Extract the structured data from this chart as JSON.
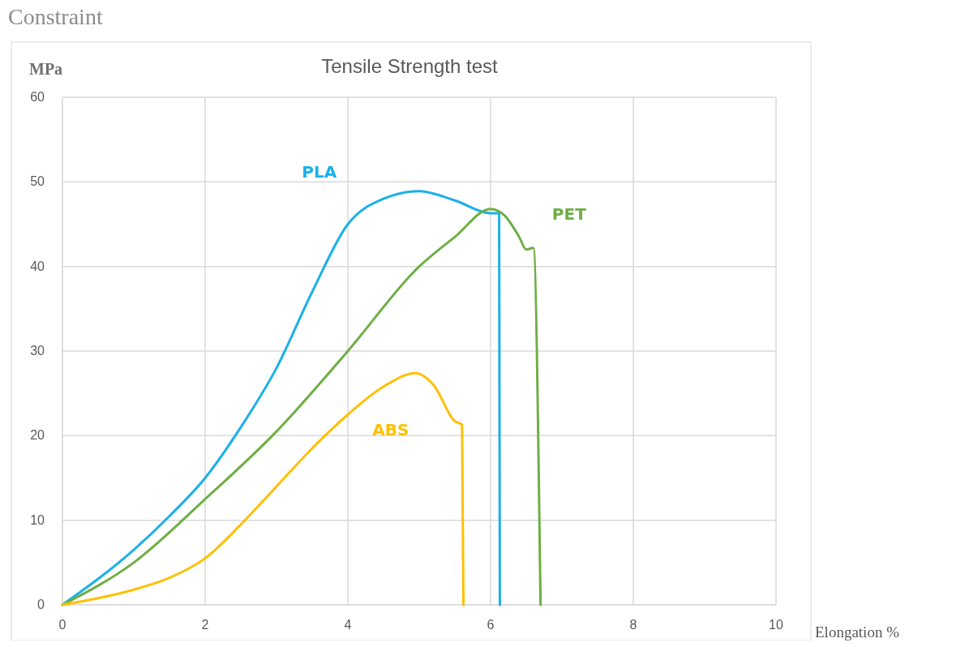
{
  "chart_data": {
    "type": "line",
    "title": "Tensile Strength test",
    "xlabel": "Elongation %",
    "ylabel": "MPa",
    "annotations": [
      "Constraint"
    ],
    "xlim": [
      0,
      10
    ],
    "ylim": [
      0,
      60
    ],
    "xticks": [
      0,
      2,
      4,
      6,
      8,
      10
    ],
    "yticks": [
      0,
      10,
      20,
      30,
      40,
      50,
      60
    ],
    "grid": true,
    "line_style": "solid",
    "series": [
      {
        "name": "PLA",
        "color": "#1ab0ea",
        "x": [
          0,
          1,
          1.5,
          2,
          2.5,
          3,
          3.5,
          4,
          4.5,
          5,
          5.5,
          6,
          6.1,
          6.12,
          6.13
        ],
        "values": [
          0,
          6.5,
          10.5,
          15,
          21,
          28,
          37,
          45,
          48,
          48.9,
          47.8,
          46.3,
          46.3,
          46.3,
          0
        ]
      },
      {
        "name": "PET",
        "color": "#6fae45",
        "x": [
          0,
          1,
          2,
          3,
          4,
          5,
          5.5,
          6,
          6.2,
          6.4,
          6.5,
          6.6,
          6.7
        ],
        "values": [
          0,
          5,
          12.5,
          20.5,
          30,
          40,
          43.5,
          46.8,
          46,
          43.5,
          42,
          42.2,
          0
        ]
      },
      {
        "name": "ABS",
        "color": "#ffc000",
        "x": [
          0,
          1,
          1.5,
          2,
          2.5,
          3,
          3.5,
          4,
          4.5,
          4.95,
          5.2,
          5.5,
          5.6,
          5.62
        ],
        "values": [
          0,
          1.8,
          3.2,
          5.5,
          9.5,
          14,
          18.5,
          22.5,
          25.8,
          27.4,
          26,
          21.7,
          21.3,
          0
        ]
      }
    ]
  }
}
